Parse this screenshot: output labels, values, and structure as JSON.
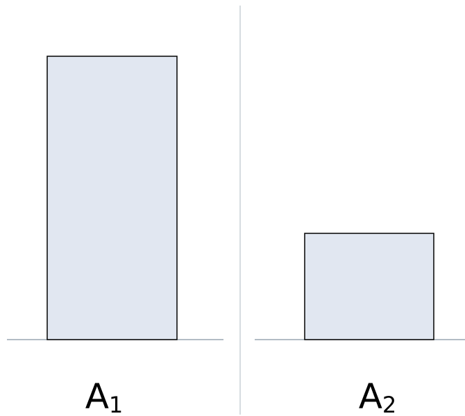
{
  "colors": {
    "bar_fill": "#e1e7f1",
    "bar_stroke": "#000000",
    "baseline": "#9aa6b2",
    "divider": "#c8d0d6",
    "label": "#000000"
  },
  "labels": {
    "left": {
      "main": "A",
      "sub": "1"
    },
    "right": {
      "main": "A",
      "sub": "2"
    }
  },
  "bars": {
    "left": {
      "relative_height": 1.0
    },
    "right": {
      "relative_height": 0.375
    }
  }
}
